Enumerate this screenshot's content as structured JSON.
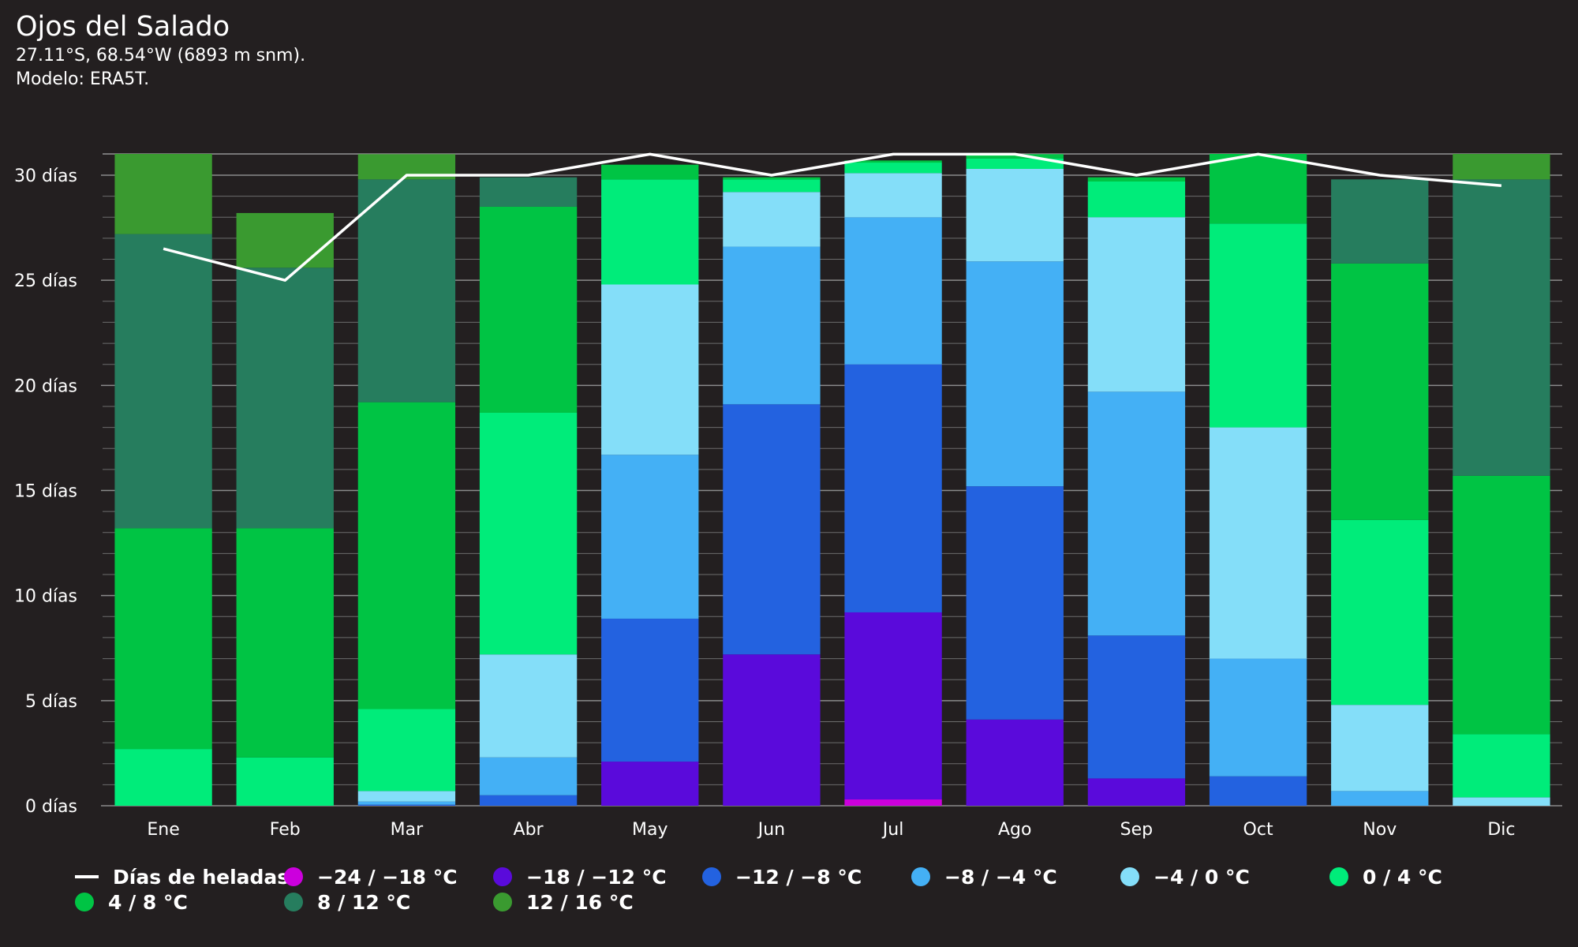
{
  "header": {
    "title": "Ojos del Salado",
    "subtitle_1": "27.11°S, 68.54°W (6893 m snm).",
    "subtitle_2": "Modelo: ERA5T."
  },
  "chart_data": {
    "type": "bar",
    "stacked": true,
    "categories": [
      "Ene",
      "Feb",
      "Mar",
      "Abr",
      "May",
      "Jun",
      "Jul",
      "Ago",
      "Sep",
      "Oct",
      "Nov",
      "Dic"
    ],
    "y_ticks": [
      "0 días",
      "5 días",
      "10 días",
      "15 días",
      "20 días",
      "25 días",
      "30 días"
    ],
    "ylim": [
      0,
      31
    ],
    "grid": true,
    "legend_position": "bottom",
    "series": [
      {
        "name": "−24 / −18 °C",
        "color": "#cc00dd",
        "values": [
          0,
          0,
          0,
          0,
          0,
          0,
          0.3,
          0,
          0,
          0,
          0,
          0
        ]
      },
      {
        "name": "−18 / −12 °C",
        "color": "#5a0adb",
        "values": [
          0,
          0,
          0,
          0,
          2.1,
          7.2,
          8.9,
          4.1,
          1.3,
          0,
          0,
          0
        ]
      },
      {
        "name": "−12 / −8 °C",
        "color": "#2362e0",
        "values": [
          0,
          0,
          0.05,
          0.5,
          6.8,
          11.9,
          11.8,
          11.1,
          6.8,
          1.4,
          0,
          0
        ]
      },
      {
        "name": "−8 / −4 °C",
        "color": "#44b0f5",
        "values": [
          0,
          0,
          0.15,
          1.8,
          7.8,
          7.5,
          7.0,
          10.7,
          11.6,
          5.6,
          0.7,
          0
        ]
      },
      {
        "name": "−4 / 0 °C",
        "color": "#84def9",
        "values": [
          0,
          0,
          0.5,
          4.9,
          8.1,
          2.6,
          2.1,
          4.4,
          8.3,
          11.0,
          4.1,
          0.4
        ]
      },
      {
        "name": "0 / 4 °C",
        "color": "#00ec7a",
        "values": [
          2.7,
          2.3,
          3.9,
          11.5,
          5.0,
          0.6,
          0.5,
          0.5,
          1.7,
          9.7,
          8.8,
          3.0
        ]
      },
      {
        "name": "4 / 8 °C",
        "color": "#00c444",
        "values": [
          10.5,
          10.9,
          14.6,
          9.8,
          0.7,
          0.1,
          0.1,
          0.2,
          0.2,
          3.4,
          12.2,
          12.3
        ]
      },
      {
        "name": "8 / 12 °C",
        "color": "#267d5e",
        "values": [
          14.0,
          12.4,
          10.6,
          1.4,
          0,
          0,
          0,
          0,
          0,
          0.4,
          4.0,
          14.1
        ]
      },
      {
        "name": "12 / 16 °C",
        "color": "#3a9a30",
        "values": [
          3.9,
          2.6,
          1.2,
          0,
          0,
          0,
          0,
          0,
          0,
          0,
          0,
          1.3
        ]
      }
    ],
    "line": {
      "name": "Días de heladas",
      "color": "#ffffff",
      "values": [
        26.5,
        25.0,
        30.0,
        30.0,
        31.0,
        30.0,
        31.0,
        31.0,
        30.0,
        31.0,
        30.0,
        29.5
      ]
    }
  }
}
